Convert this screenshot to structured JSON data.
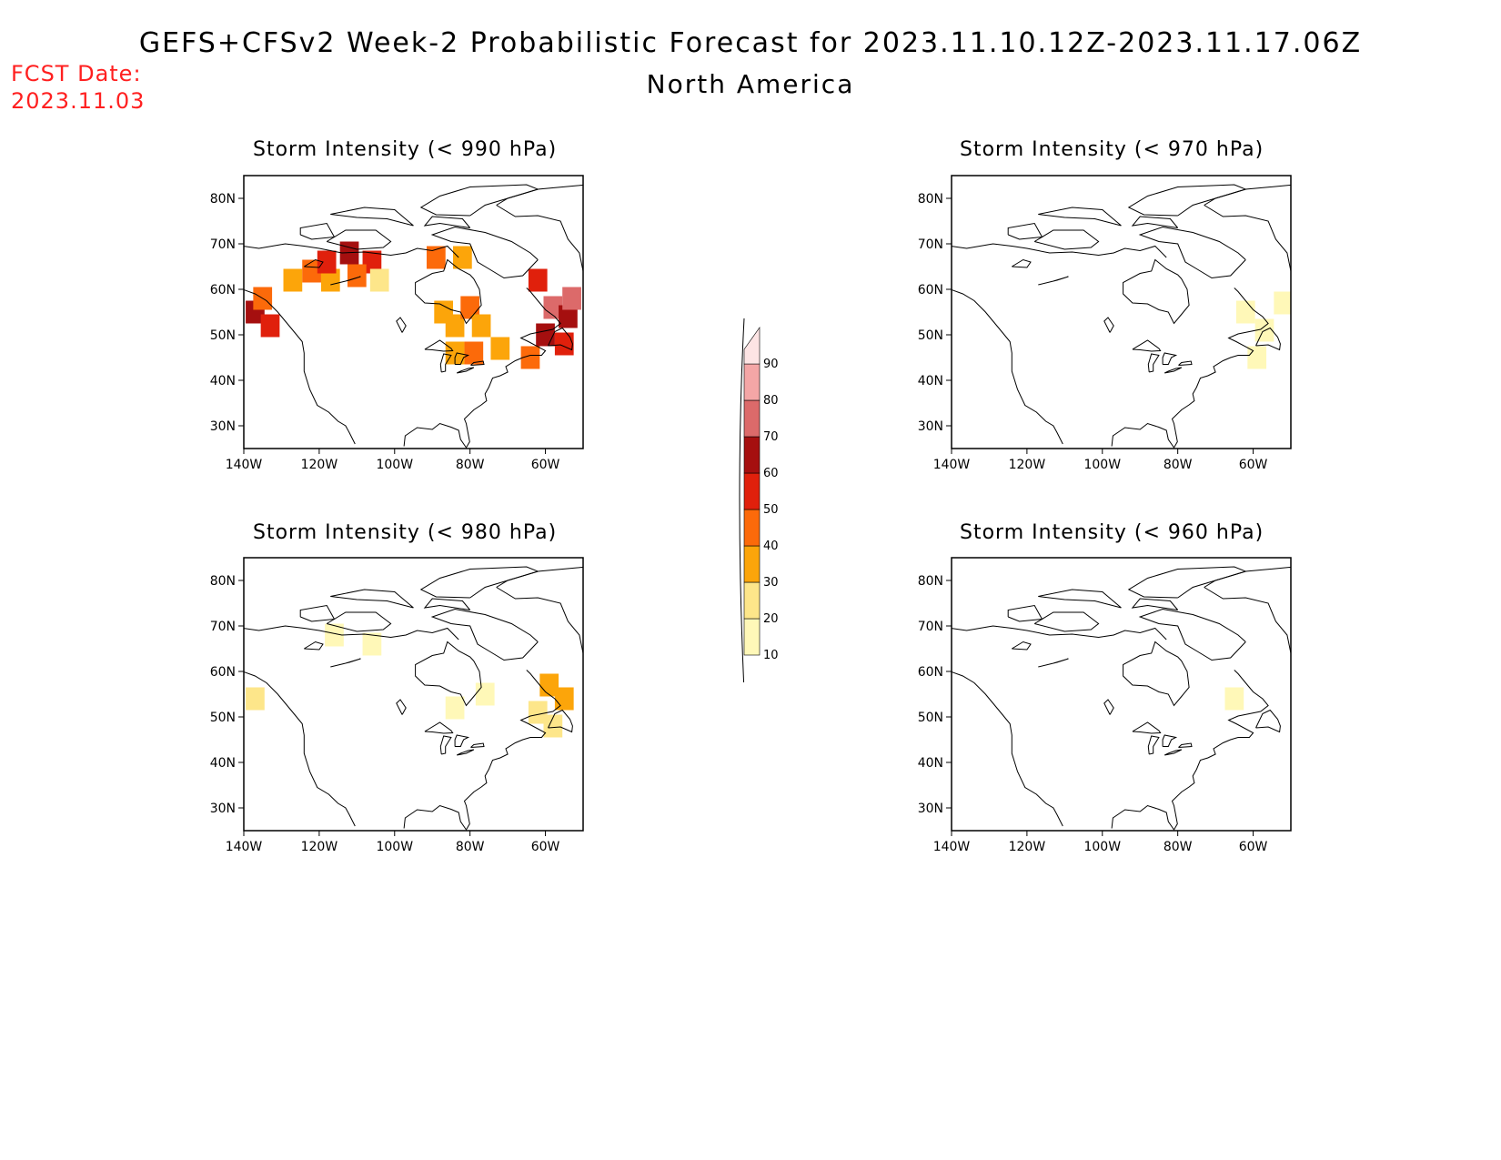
{
  "header": {
    "title": "GEFS+CFSv2 Week-2 Probabilistic Forecast for 2023.11.10.12Z-2023.11.17.06Z",
    "subtitle": "North America",
    "fcst_line1": "FCST Date:",
    "fcst_line2": "2023.11.03"
  },
  "axes": {
    "lat_labels": [
      "30N",
      "40N",
      "50N",
      "60N",
      "70N",
      "80N"
    ],
    "lat_values": [
      30,
      40,
      50,
      60,
      70,
      80
    ],
    "lon_labels": [
      "140W",
      "120W",
      "100W",
      "80W",
      "60W"
    ],
    "lon_values": [
      -140,
      -120,
      -100,
      -80,
      -60
    ],
    "lon_range": [
      -140,
      -50
    ],
    "lat_range": [
      25,
      85
    ]
  },
  "panels": [
    {
      "id": "p990",
      "title": "Storm Intensity (< 990 hPa)"
    },
    {
      "id": "p970",
      "title": "Storm Intensity (< 970 hPa)"
    },
    {
      "id": "p980",
      "title": "Storm Intensity (< 980 hPa)"
    },
    {
      "id": "p960",
      "title": "Storm Intensity (< 960 hPa)"
    }
  ],
  "colorbar": {
    "levels": [
      "10",
      "20",
      "30",
      "40",
      "50",
      "60",
      "70",
      "80",
      "90"
    ],
    "colors": [
      "#fff8b8",
      "#fde68a",
      "#fca50a",
      "#fc6a0a",
      "#e0200c",
      "#a50f0f",
      "#dc6a6a",
      "#f4a6a6",
      "#fde4e4"
    ]
  },
  "chart_data": {
    "type": "heatmap",
    "units": "probability (%)",
    "fields": {
      "p990": [
        {
          "lon": -137,
          "lat": 55,
          "v": 65
        },
        {
          "lon": -133,
          "lat": 52,
          "v": 55
        },
        {
          "lon": -135,
          "lat": 58,
          "v": 45
        },
        {
          "lon": -127,
          "lat": 62,
          "v": 35
        },
        {
          "lon": -122,
          "lat": 64,
          "v": 45
        },
        {
          "lon": -117,
          "lat": 62,
          "v": 35
        },
        {
          "lon": -118,
          "lat": 66,
          "v": 55
        },
        {
          "lon": -112,
          "lat": 68,
          "v": 65
        },
        {
          "lon": -106,
          "lat": 66,
          "v": 55
        },
        {
          "lon": -110,
          "lat": 63,
          "v": 45
        },
        {
          "lon": -104,
          "lat": 62,
          "v": 25
        },
        {
          "lon": -89,
          "lat": 67,
          "v": 45
        },
        {
          "lon": -82,
          "lat": 67,
          "v": 35
        },
        {
          "lon": -87,
          "lat": 55,
          "v": 30
        },
        {
          "lon": -84,
          "lat": 52,
          "v": 35
        },
        {
          "lon": -80,
          "lat": 56,
          "v": 45
        },
        {
          "lon": -77,
          "lat": 52,
          "v": 35
        },
        {
          "lon": -79,
          "lat": 46,
          "v": 45
        },
        {
          "lon": -84,
          "lat": 46,
          "v": 35
        },
        {
          "lon": -72,
          "lat": 47,
          "v": 35
        },
        {
          "lon": -62,
          "lat": 62,
          "v": 55
        },
        {
          "lon": -58,
          "lat": 56,
          "v": 75
        },
        {
          "lon": -54,
          "lat": 54,
          "v": 65
        },
        {
          "lon": -60,
          "lat": 50,
          "v": 65
        },
        {
          "lon": -55,
          "lat": 48,
          "v": 55
        },
        {
          "lon": -64,
          "lat": 45,
          "v": 45
        },
        {
          "lon": -53,
          "lat": 58,
          "v": 75
        }
      ],
      "p980": [
        {
          "lon": -137,
          "lat": 54,
          "v": 20
        },
        {
          "lon": -116,
          "lat": 68,
          "v": 15
        },
        {
          "lon": -106,
          "lat": 66,
          "v": 15
        },
        {
          "lon": -84,
          "lat": 52,
          "v": 15
        },
        {
          "lon": -76,
          "lat": 55,
          "v": 15
        },
        {
          "lon": -59,
          "lat": 57,
          "v": 35
        },
        {
          "lon": -55,
          "lat": 54,
          "v": 35
        },
        {
          "lon": -62,
          "lat": 51,
          "v": 25
        },
        {
          "lon": -58,
          "lat": 48,
          "v": 25
        }
      ],
      "p970": [
        {
          "lon": -62,
          "lat": 55,
          "v": 15
        },
        {
          "lon": -57,
          "lat": 51,
          "v": 15
        },
        {
          "lon": -52,
          "lat": 57,
          "v": 15
        },
        {
          "lon": -59,
          "lat": 45,
          "v": 15
        }
      ],
      "p960": [
        {
          "lon": -65,
          "lat": 54,
          "v": 12
        }
      ]
    }
  }
}
